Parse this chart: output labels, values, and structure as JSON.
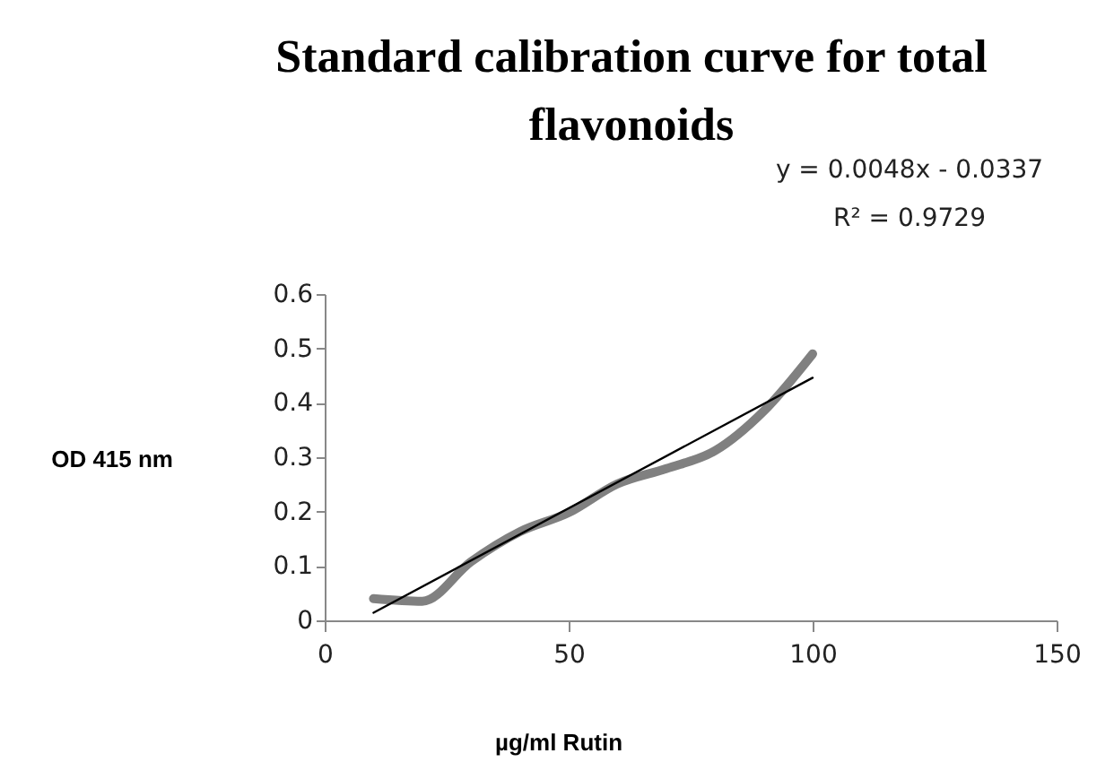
{
  "chart_data": {
    "type": "line",
    "title": "Standard calibration curve for total flavonoids",
    "xlabel": "µg/ml Rutin",
    "ylabel": "OD 415 nm",
    "annotations": [
      "y = 0.0048x - 0.0337",
      "R² = 0.9729"
    ],
    "x": [
      10,
      20,
      30,
      40,
      50,
      60,
      70,
      80,
      90,
      100
    ],
    "xlim": [
      0,
      150
    ],
    "xticks": [
      0,
      50,
      100,
      150
    ],
    "ylim": [
      0,
      0.6
    ],
    "yticks": [
      0,
      0.1,
      0.2,
      0.3,
      0.4,
      0.5,
      0.6
    ],
    "grid": false,
    "marker": "none",
    "line_style": "solid",
    "series": [
      {
        "color": "#808080",
        "values": [
          0.04,
          0.035,
          0.108,
          0.163,
          0.198,
          0.251,
          0.279,
          0.312,
          0.385,
          0.49
        ]
      },
      {
        "type": "line",
        "color": "#000000",
        "x": [
          10,
          100
        ],
        "values": [
          0.014,
          0.446
        ]
      }
    ]
  }
}
